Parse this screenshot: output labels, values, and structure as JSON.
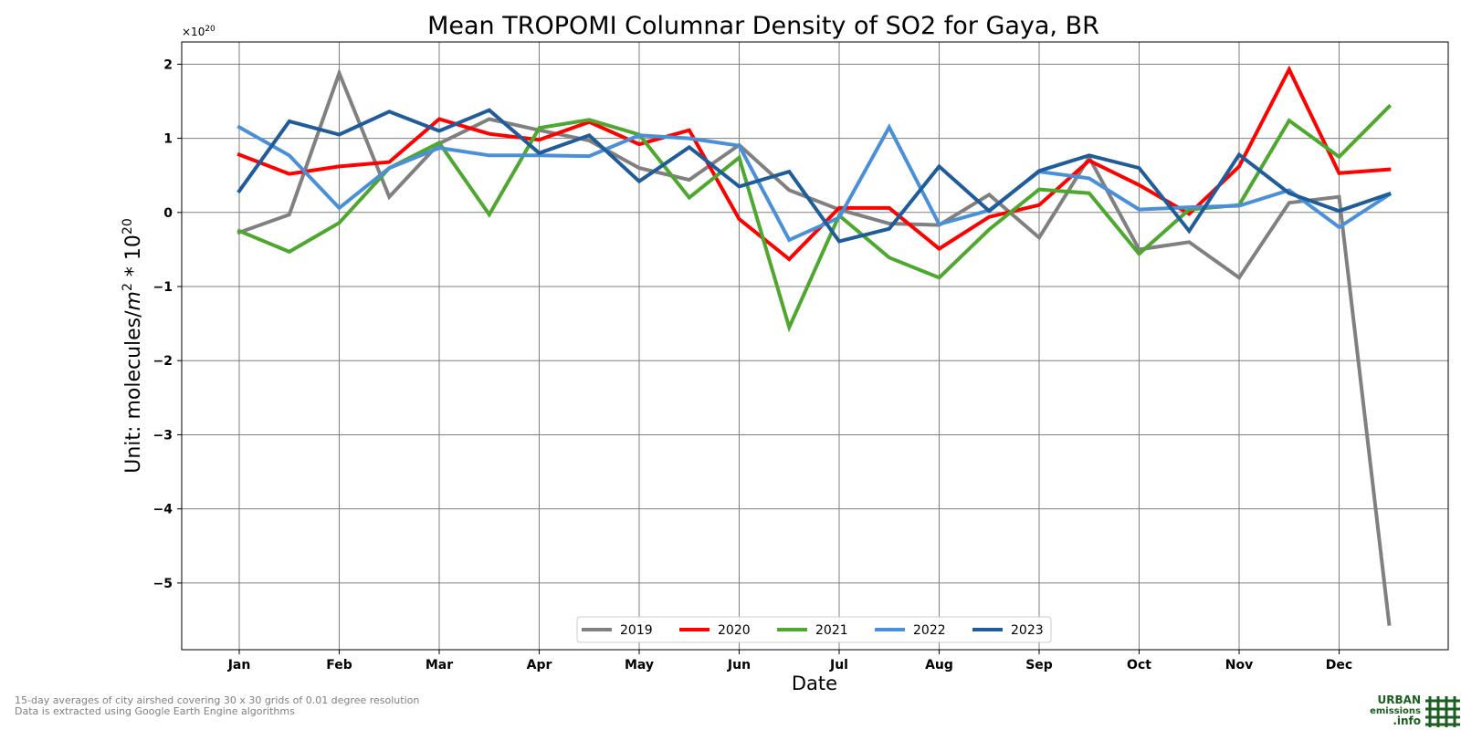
{
  "chart_data": {
    "type": "line",
    "title": "Mean TROPOMI Columnar Density of SO2 for Gaya, BR",
    "xlabel": "Date",
    "ylabel": "Unit: molecules/m² * 10²⁰",
    "ylabel_parts": {
      "base": "Unit: molecules/",
      "m": "m",
      "m_exp": "2",
      "mid": " * 10",
      "exp": "20"
    },
    "y_offset_text": {
      "base": "×10",
      "exp": "20"
    },
    "ylim": [
      -5.9,
      2.3
    ],
    "yticks": [
      2,
      1,
      0,
      -1,
      -2,
      -3,
      -4,
      -5
    ],
    "ytick_labels": [
      "2",
      "1",
      "0",
      "−1",
      "−2",
      "−3",
      "−4",
      "−5"
    ],
    "months": [
      "Jan",
      "Feb",
      "Mar",
      "Apr",
      "May",
      "Jun",
      "Jul",
      "Aug",
      "Sep",
      "Oct",
      "Nov",
      "Dec"
    ],
    "x_points_per_month": 2,
    "grid": true,
    "legend_position": "lower center",
    "series": [
      {
        "name": "2019",
        "color": "#808080",
        "values": [
          -0.27,
          -0.03,
          1.88,
          0.21,
          0.93,
          1.26,
          1.11,
          0.97,
          0.6,
          0.44,
          0.91,
          0.3,
          0.04,
          -0.15,
          -0.17,
          0.24,
          -0.34,
          0.74,
          -0.5,
          -0.4,
          -0.88,
          0.13,
          0.21,
          -5.55
        ]
      },
      {
        "name": "2020",
        "color": "#ff0000",
        "values": [
          0.78,
          0.52,
          0.62,
          0.68,
          1.26,
          1.06,
          0.98,
          1.22,
          0.92,
          1.11,
          -0.09,
          -0.63,
          0.06,
          0.06,
          -0.49,
          -0.06,
          0.1,
          0.7,
          0.37,
          -0.02,
          0.62,
          1.93,
          0.53,
          0.58
        ]
      },
      {
        "name": "2021",
        "color": "#4ea72e",
        "values": [
          -0.25,
          -0.53,
          -0.14,
          0.6,
          0.94,
          -0.03,
          1.14,
          1.25,
          1.05,
          0.2,
          0.74,
          -1.55,
          -0.04,
          -0.61,
          -0.88,
          -0.23,
          0.31,
          0.26,
          -0.56,
          0.04,
          0.1,
          1.24,
          0.75,
          1.43
        ]
      },
      {
        "name": "2022",
        "color": "#4a90d9",
        "values": [
          1.15,
          0.77,
          0.06,
          0.6,
          0.87,
          0.77,
          0.77,
          0.76,
          1.04,
          1.0,
          0.9,
          -0.37,
          -0.07,
          1.15,
          -0.16,
          0.03,
          0.55,
          0.46,
          0.04,
          0.07,
          0.09,
          0.3,
          -0.2,
          0.24
        ]
      },
      {
        "name": "2023",
        "color": "#1f5c99",
        "values": [
          0.29,
          1.23,
          1.05,
          1.36,
          1.1,
          1.38,
          0.8,
          1.04,
          0.42,
          0.88,
          0.35,
          0.55,
          -0.39,
          -0.22,
          0.62,
          0.02,
          0.56,
          0.77,
          0.6,
          -0.25,
          0.78,
          0.26,
          0.02,
          0.25
        ]
      }
    ]
  },
  "footer": {
    "note_line1": "15-day averages of city airshed covering 30 x 30 grids of 0.01 degree resolution",
    "note_line2": "Data is extracted using Google Earth Engine algorithms"
  },
  "logo": {
    "line1": "URBAN",
    "line2": "emissions",
    "line3": ".info",
    "color": "#1b5e20"
  }
}
